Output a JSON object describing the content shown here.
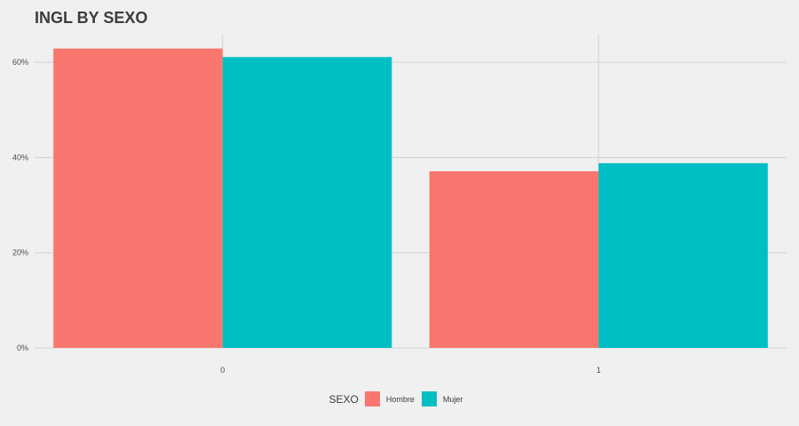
{
  "chart_data": {
    "type": "bar",
    "title": "INGL BY SEXO",
    "xlabel": "",
    "ylabel": "",
    "categories": [
      "0",
      "1"
    ],
    "series": [
      {
        "name": "Hombre",
        "values": [
          0.629,
          0.371
        ],
        "color": "#F8766D"
      },
      {
        "name": "Mujer",
        "values": [
          0.611,
          0.388
        ],
        "color": "#00BFC4"
      }
    ],
    "yticks": [
      0,
      0.2,
      0.4,
      0.6
    ],
    "ytick_labels": [
      "0%",
      "20%",
      "40%",
      "60%"
    ],
    "ylim": [
      0,
      0.66
    ],
    "grid": true,
    "legend_title": "SEXO",
    "legend_position": "bottom"
  }
}
